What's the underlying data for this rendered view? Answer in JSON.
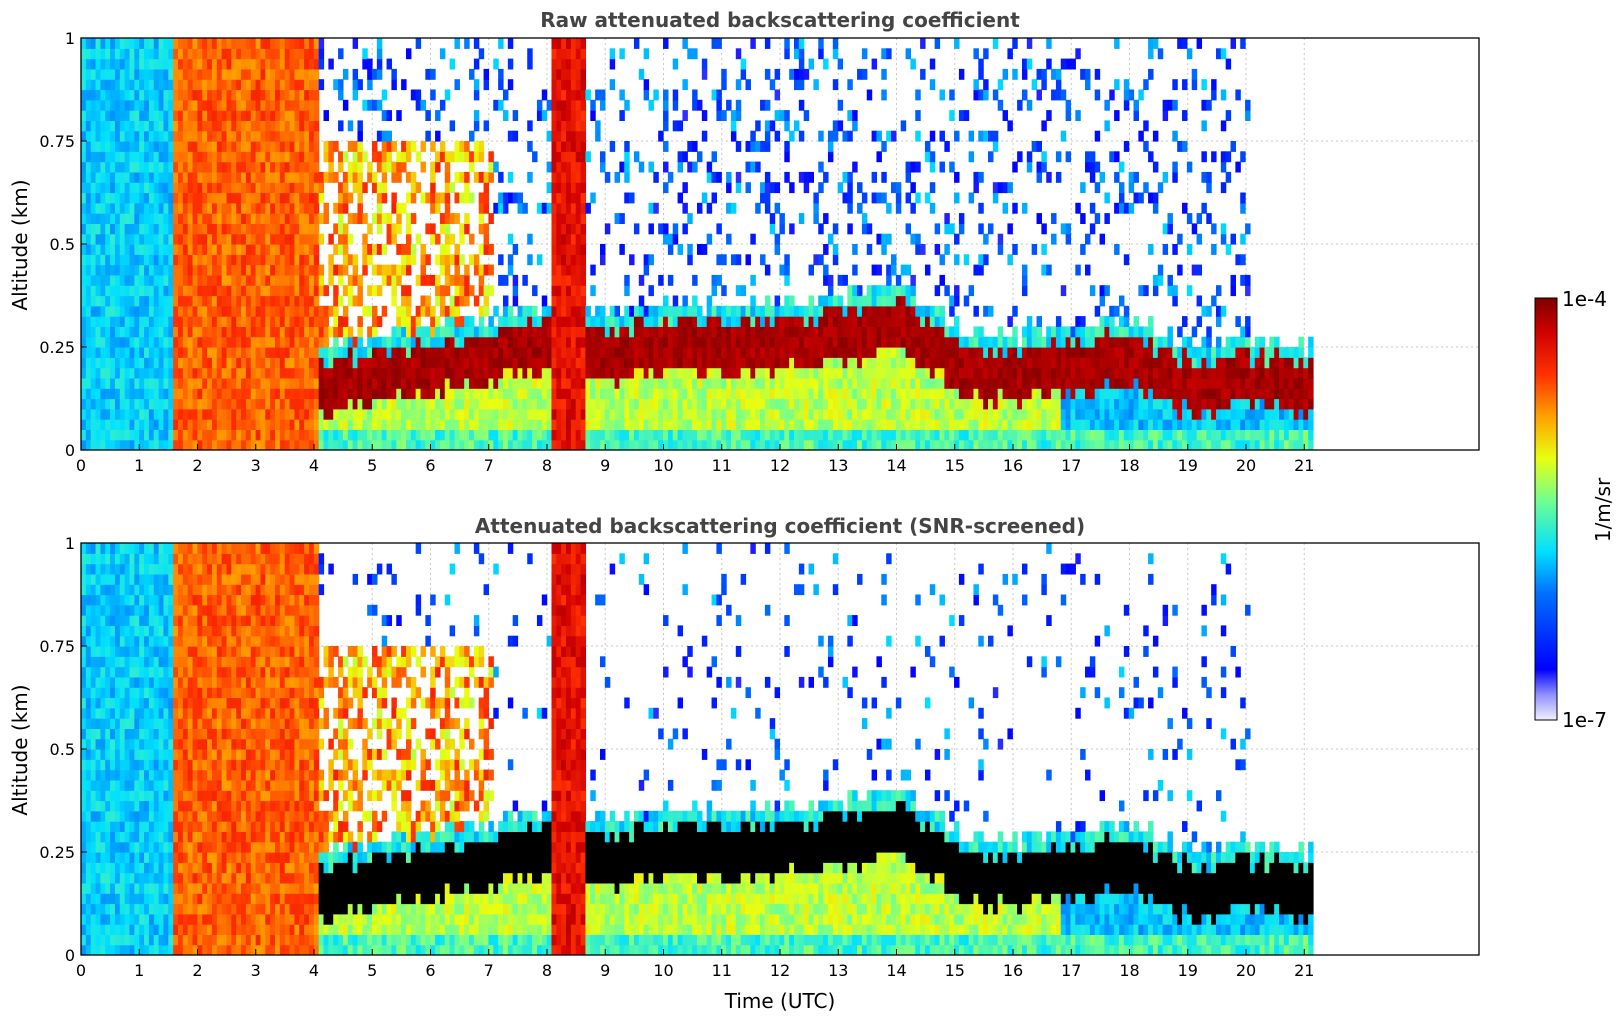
{
  "chart_data": [
    {
      "type": "heatmap",
      "title": "Raw attenuated backscattering coefficient",
      "xlabel": "",
      "ylabel": "Altitude (km)",
      "xlim": [
        0,
        24
      ],
      "ylim": [
        0,
        1
      ],
      "xticks": [
        "0",
        "1",
        "2",
        "3",
        "4",
        "5",
        "6",
        "7",
        "8",
        "9",
        "10",
        "11",
        "12",
        "13",
        "14",
        "15",
        "16",
        "17",
        "18",
        "19",
        "20",
        "21"
      ],
      "yticks": [
        "0",
        "0.25",
        "0.5",
        "0.75",
        "1"
      ],
      "grid": true,
      "data_extent_hours": [
        0,
        21.15
      ],
      "features": {
        "low_cloud_layer_top_km": [
          0.3,
          0.3,
          0.3,
          0.3,
          0.2,
          0.22,
          0.25,
          0.27,
          0.3,
          0.28,
          0.3,
          0.3,
          0.3,
          0.32,
          0.35,
          0.25,
          0.22,
          0.25,
          0.27,
          0.2,
          0.22,
          0.2
        ],
        "saturated_columns_hours": [
          [
            1.5,
            4.0
          ],
          [
            8.0,
            8.6
          ]
        ]
      },
      "screened": false
    },
    {
      "type": "heatmap",
      "title": "Attenuated backscattering coefficient (SNR-screened)",
      "xlabel": "Time (UTC)",
      "ylabel": "Altitude (km)",
      "xlim": [
        0,
        24
      ],
      "ylim": [
        0,
        1
      ],
      "xticks": [
        "0",
        "1",
        "2",
        "3",
        "4",
        "5",
        "6",
        "7",
        "8",
        "9",
        "10",
        "11",
        "12",
        "13",
        "14",
        "15",
        "16",
        "17",
        "18",
        "19",
        "20",
        "21"
      ],
      "yticks": [
        "0",
        "0.25",
        "0.5",
        "0.75",
        "1"
      ],
      "grid": true,
      "data_extent_hours": [
        0,
        21.15
      ],
      "screened": true
    }
  ],
  "colorbar": {
    "label": "1/m/sr",
    "max_label": "1e-4",
    "min_label": "1e-7",
    "colormap": "jet",
    "scale": "log"
  }
}
